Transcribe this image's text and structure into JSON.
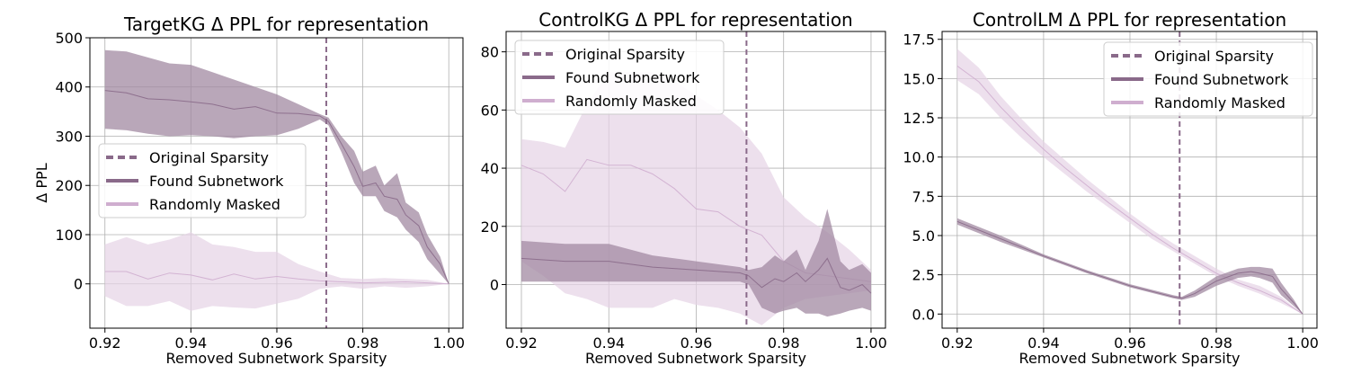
{
  "colors": {
    "found": "#8a6a8a",
    "found_band": "#a18aa1",
    "random": "#cfaecf",
    "random_band": "#e6d3e6",
    "original": "#8a6a8a"
  },
  "chart_data": [
    {
      "type": "line",
      "title": "TargetKG Δ PPL for representation",
      "xlabel": "Removed Subnetwork Sparsity",
      "ylabel": "Δ PPL",
      "xlim": [
        0.9165,
        1.0033
      ],
      "ylim": [
        -90,
        500
      ],
      "xticks": [
        0.92,
        0.94,
        0.96,
        0.98,
        1.0
      ],
      "xtick_labels": [
        "0.92",
        "0.94",
        "0.96",
        "0.98",
        "1.00"
      ],
      "yticks": [
        0,
        100,
        200,
        300,
        400,
        500
      ],
      "ytick_labels": [
        "0",
        "100",
        "200",
        "300",
        "400",
        "500"
      ],
      "grid": true,
      "legend_position": "center-left",
      "legend": [
        "Original Sparsity",
        "Found Subnetwork",
        "Randomly Masked"
      ],
      "original_sparsity": 0.9715,
      "series": [
        {
          "name": "Found Subnetwork",
          "x": [
            0.92,
            0.925,
            0.93,
            0.935,
            0.94,
            0.945,
            0.95,
            0.955,
            0.96,
            0.965,
            0.97,
            0.972,
            0.975,
            0.978,
            0.98,
            0.983,
            0.985,
            0.988,
            0.99,
            0.993,
            0.995,
            0.998,
            1.0
          ],
          "y": [
            393,
            388,
            376,
            374,
            370,
            365,
            355,
            360,
            347,
            346,
            341,
            330,
            285,
            238,
            198,
            205,
            178,
            172,
            140,
            118,
            75,
            40,
            0
          ],
          "lower": [
            315,
            312,
            305,
            300,
            302,
            300,
            296,
            300,
            302,
            315,
            334,
            322,
            268,
            205,
            178,
            178,
            148,
            135,
            110,
            85,
            50,
            20,
            0
          ],
          "upper": [
            475,
            472,
            460,
            448,
            445,
            430,
            415,
            400,
            385,
            365,
            345,
            338,
            300,
            270,
            228,
            240,
            200,
            225,
            165,
            145,
            100,
            55,
            0
          ]
        },
        {
          "name": "Randomly Masked",
          "x": [
            0.92,
            0.925,
            0.93,
            0.935,
            0.94,
            0.945,
            0.95,
            0.955,
            0.96,
            0.965,
            0.97,
            0.975,
            0.98,
            0.985,
            0.99,
            0.995,
            1.0
          ],
          "y": [
            25,
            25,
            10,
            22,
            18,
            8,
            20,
            10,
            15,
            10,
            6,
            4,
            2,
            3,
            4,
            2,
            0
          ],
          "lower": [
            -25,
            -45,
            -45,
            -35,
            -55,
            -45,
            -48,
            -50,
            -40,
            -30,
            -10,
            -5,
            -10,
            -5,
            -8,
            -5,
            0
          ],
          "upper": [
            80,
            95,
            80,
            90,
            105,
            80,
            75,
            65,
            65,
            40,
            25,
            12,
            10,
            12,
            10,
            8,
            0
          ]
        }
      ]
    },
    {
      "type": "line",
      "title": "ControlKG Δ PPL for representation",
      "xlabel": "Removed Subnetwork Sparsity",
      "ylabel": "",
      "xlim": [
        0.9165,
        1.0033
      ],
      "ylim": [
        -15,
        87
      ],
      "xticks": [
        0.92,
        0.94,
        0.96,
        0.98,
        1.0
      ],
      "xtick_labels": [
        "0.92",
        "0.94",
        "0.96",
        "0.98",
        "1.00"
      ],
      "yticks": [
        0,
        20,
        40,
        60,
        80
      ],
      "ytick_labels": [
        "0",
        "20",
        "40",
        "60",
        "80"
      ],
      "grid": true,
      "legend_position": "upper-left",
      "legend": [
        "Original Sparsity",
        "Found Subnetwork",
        "Randomly Masked"
      ],
      "original_sparsity": 0.9715,
      "series": [
        {
          "name": "Found Subnetwork",
          "x": [
            0.92,
            0.93,
            0.94,
            0.95,
            0.96,
            0.97,
            0.972,
            0.975,
            0.978,
            0.98,
            0.983,
            0.985,
            0.988,
            0.99,
            0.993,
            0.995,
            0.998,
            1.0
          ],
          "y": [
            9,
            8,
            8,
            6,
            5,
            4,
            3,
            -1,
            2,
            1,
            4,
            1,
            5,
            9,
            -1,
            -2,
            0,
            -3
          ],
          "lower": [
            1,
            1,
            1,
            1,
            1,
            1,
            0,
            -8,
            -10,
            -9,
            -8,
            -10,
            -10,
            -11,
            -10,
            -9,
            -8,
            -9
          ],
          "upper": [
            15,
            14,
            14,
            10,
            8,
            6,
            5,
            6,
            10,
            8,
            12,
            5,
            15,
            26,
            8,
            5,
            7,
            4
          ]
        },
        {
          "name": "Randomly Masked",
          "x": [
            0.92,
            0.925,
            0.93,
            0.935,
            0.94,
            0.945,
            0.95,
            0.955,
            0.96,
            0.965,
            0.97,
            0.975,
            0.98,
            0.985,
            0.99,
            0.995,
            1.0
          ],
          "y": [
            41,
            38,
            32,
            43,
            41,
            41,
            38,
            33,
            26,
            25,
            20,
            17,
            8,
            4,
            3,
            2,
            1
          ],
          "lower": [
            8,
            3,
            -3,
            -5,
            -8,
            -8,
            -8,
            -5,
            -7,
            -8,
            -10,
            -14,
            -8,
            -5,
            -4,
            -3,
            -2
          ],
          "upper": [
            50,
            49,
            47,
            62,
            73,
            73,
            73,
            70,
            65,
            60,
            54,
            45,
            30,
            23,
            18,
            12,
            5
          ]
        }
      ]
    },
    {
      "type": "line",
      "title": "ControlLM Δ PPL for representation",
      "xlabel": "Removed Subnetwork Sparsity",
      "ylabel": "",
      "xlim": [
        0.9165,
        1.0033
      ],
      "ylim": [
        -0.9,
        18.0
      ],
      "xticks": [
        0.92,
        0.94,
        0.96,
        0.98,
        1.0
      ],
      "xtick_labels": [
        "0.92",
        "0.94",
        "0.96",
        "0.98",
        "1.00"
      ],
      "yticks": [
        0.0,
        2.5,
        5.0,
        7.5,
        10.0,
        12.5,
        15.0,
        17.5
      ],
      "ytick_labels": [
        "0.0",
        "2.5",
        "5.0",
        "7.5",
        "10.0",
        "12.5",
        "15.0",
        "17.5"
      ],
      "grid": true,
      "legend_position": "upper-right",
      "legend": [
        "Original Sparsity",
        "Found Subnetwork",
        "Randomly Masked"
      ],
      "original_sparsity": 0.9715,
      "series": [
        {
          "name": "Found Subnetwork",
          "x": [
            0.92,
            0.93,
            0.94,
            0.95,
            0.96,
            0.97,
            0.972,
            0.975,
            0.98,
            0.985,
            0.988,
            0.99,
            0.993,
            0.995,
            0.998,
            1.0
          ],
          "y": [
            5.9,
            4.8,
            3.7,
            2.7,
            1.8,
            1.1,
            1.0,
            1.3,
            2.1,
            2.6,
            2.7,
            2.6,
            2.4,
            1.6,
            0.7,
            0.0
          ],
          "lower": [
            5.7,
            4.6,
            3.6,
            2.6,
            1.7,
            1.0,
            0.9,
            1.1,
            1.8,
            2.3,
            2.4,
            2.3,
            2.0,
            1.2,
            0.5,
            0.0
          ],
          "upper": [
            6.1,
            5.0,
            3.8,
            2.8,
            1.9,
            1.2,
            1.1,
            1.5,
            2.4,
            2.9,
            3.0,
            3.0,
            2.9,
            2.0,
            0.9,
            0.0
          ]
        },
        {
          "name": "Randomly Masked",
          "x": [
            0.92,
            0.925,
            0.93,
            0.935,
            0.94,
            0.945,
            0.95,
            0.955,
            0.96,
            0.965,
            0.97,
            0.975,
            0.98,
            0.985,
            0.99,
            0.995,
            1.0
          ],
          "y": [
            15.8,
            14.8,
            13.2,
            11.8,
            10.5,
            9.3,
            8.2,
            7.1,
            6.1,
            5.1,
            4.2,
            3.4,
            2.6,
            2.0,
            1.5,
            0.9,
            0.0
          ],
          "lower": [
            14.9,
            14.0,
            12.5,
            11.2,
            10.0,
            8.9,
            7.8,
            6.8,
            5.8,
            4.8,
            4.0,
            3.2,
            2.4,
            1.8,
            1.3,
            0.7,
            0.0
          ],
          "upper": [
            16.9,
            15.7,
            13.9,
            12.4,
            11.0,
            9.8,
            8.6,
            7.5,
            6.4,
            5.4,
            4.5,
            3.7,
            2.9,
            2.2,
            1.8,
            1.1,
            0.0
          ]
        }
      ]
    }
  ]
}
